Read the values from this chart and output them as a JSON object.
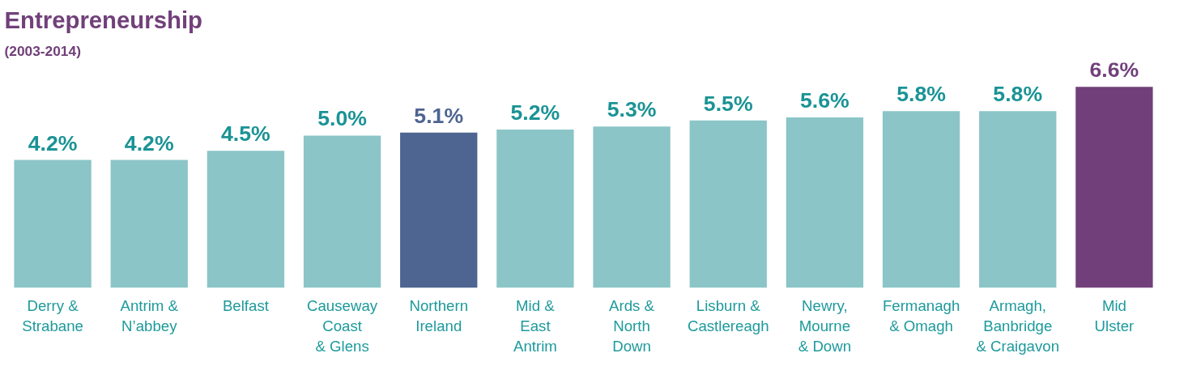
{
  "chart_data": {
    "type": "bar",
    "title": "Entrepreneurship",
    "subtitle": "(2003-2014)",
    "categories": [
      "Derry &\nStrabane",
      "Antrim &\nN’abbey",
      "Belfast",
      "Causeway\nCoast\n& Glens",
      "Northern\nIreland",
      "Mid &\nEast\nAntrim",
      "Ards &\nNorth\nDown",
      "Lisburn &\nCastlereagh",
      "Newry,\nMourne\n& Down",
      "Fermanagh\n& Omagh",
      "Armagh,\nBanbridge\n& Craigavon",
      "Mid\nUlster"
    ],
    "values": [
      4.2,
      4.2,
      4.5,
      5.0,
      5.1,
      5.2,
      5.3,
      5.5,
      5.6,
      5.8,
      5.8,
      6.6
    ],
    "colors": [
      "#8bc5c7",
      "#8bc5c7",
      "#8bc5c7",
      "#8bc5c7",
      "#4e6491",
      "#8bc5c7",
      "#8bc5c7",
      "#8bc5c7",
      "#8bc5c7",
      "#8bc5c7",
      "#8bc5c7",
      "#71407a"
    ],
    "value_labels": [
      "4.2%",
      "4.2%",
      "4.5%",
      "5.0%",
      "5.1%",
      "5.2%",
      "5.3%",
      "5.5%",
      "5.6%",
      "5.8%",
      "5.8%",
      "6.6%"
    ],
    "grid": false
  }
}
